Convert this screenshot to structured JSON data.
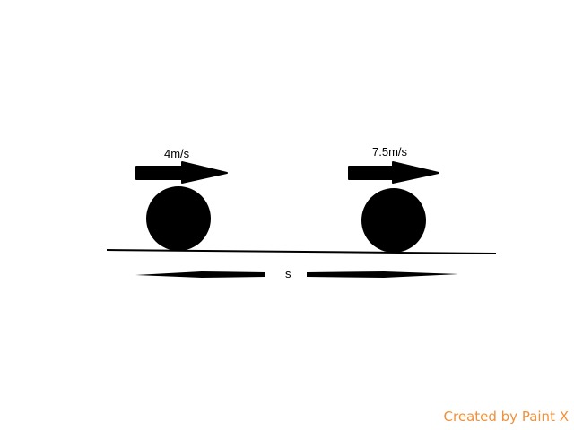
{
  "diagram": {
    "ball_left_velocity": "4m/s",
    "ball_right_velocity": "7.5m/s",
    "distance_label": "s"
  },
  "watermark": "Created by Paint X",
  "colors": {
    "ink": "#000000",
    "watermark": "#f0913a",
    "background": "#ffffff"
  }
}
